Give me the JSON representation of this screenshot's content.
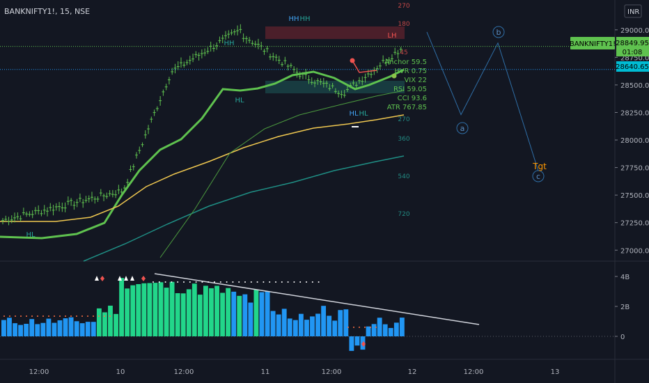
{
  "header": {
    "symbol_line": "BANKNIFTY1!, 15, NSE",
    "currency_button": "INR"
  },
  "price_axis": {
    "ticks": [
      "29000.00",
      "28750.00",
      "28500.00",
      "28250.00",
      "28000.00",
      "27750.00",
      "27500.00",
      "27250.00",
      "27000.00"
    ],
    "symbol_tag": "BANKNIFTY1!",
    "last_price_label": "28849.95",
    "countdown_label": "01:08",
    "secondary_label": "28640.65"
  },
  "volume_axis": {
    "ticks": [
      "4B",
      "2B",
      "0"
    ]
  },
  "time_axis": {
    "ticks": [
      "12:00",
      "10",
      "12:00",
      "11",
      "12:00",
      "12",
      "12:00",
      "13"
    ]
  },
  "indicator_panel": {
    "lines": [
      "Anchor 59.5",
      "HVR 0.75",
      "VIX 22",
      "RSI 59.05",
      "CCI 93.6",
      "ATR 767.85"
    ]
  },
  "pivot_labels": {
    "hh": [
      "HH",
      "HH",
      "HH"
    ],
    "hl": [
      "HL",
      "HL",
      "HL",
      "HL"
    ],
    "lh": "LH"
  },
  "period_labels": [
    "270",
    "180",
    "45",
    "270",
    "360",
    "540",
    "720"
  ],
  "wave_labels": {
    "a": "a",
    "b": "b",
    "c": "c",
    "target": "Tgt"
  },
  "colors": {
    "background": "#131722",
    "up_candle": "#26a69a",
    "green_bars": "#22d68a",
    "blue_bars": "#2196f3",
    "ma_yellow": "#f0c850",
    "ma_green": "#5fc24f",
    "wave_line": "#2f6ea6",
    "target": "#ff9800"
  },
  "chart_data": [
    {
      "type": "candlestick",
      "title": "",
      "x_range": [
        "09 12:00",
        "13 12:00"
      ],
      "ylim": [
        26850,
        29100
      ],
      "last_price": 28849.95,
      "projection_wave": [
        {
          "label": "b",
          "price": 28880
        },
        {
          "label": "a",
          "price": 28230
        },
        {
          "label": "c",
          "price": 27720
        }
      ],
      "target_label": "Tgt"
    },
    {
      "type": "bar",
      "title": "",
      "ylim": [
        -1.2,
        4.6
      ],
      "y_unit": "B",
      "note_series": [
        "volume-like histogram"
      ]
    }
  ]
}
